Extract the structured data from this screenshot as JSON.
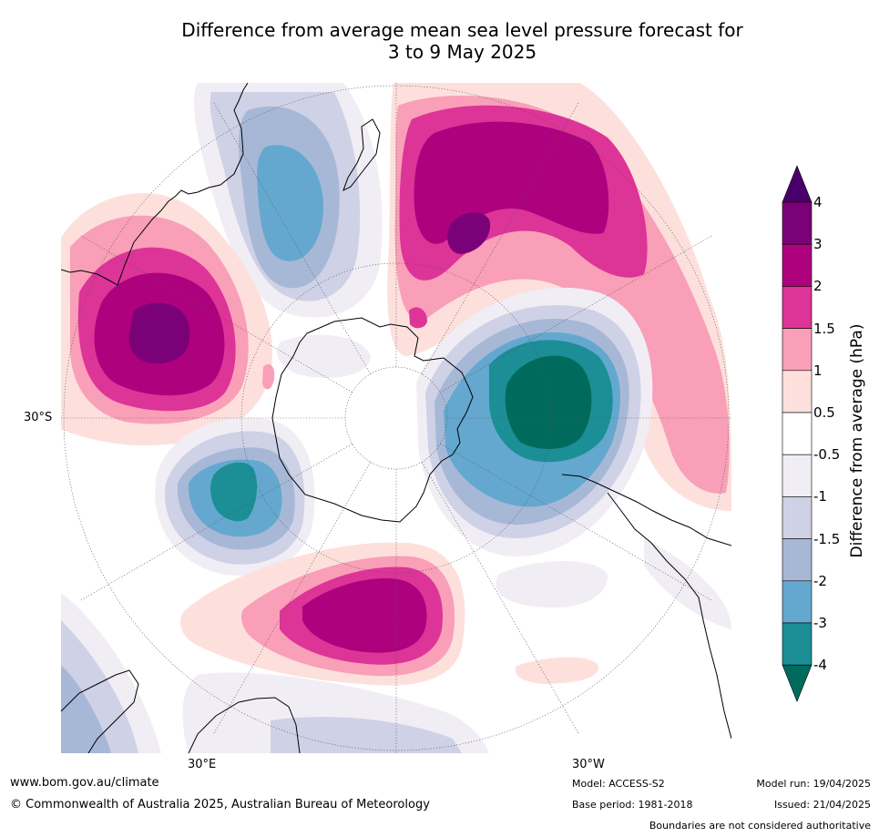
{
  "title_line1": "Difference from average mean sea level pressure forecast for",
  "title_line2": "3 to 9 May 2025",
  "map": {
    "lat_label": "30°S",
    "lon_labels": [
      "30°E",
      "30°W"
    ],
    "colors": {
      "n4": "#006b5c",
      "n3": "#1b8e96",
      "n2": "#64a8cf",
      "n15": "#a7b8d7",
      "n1": "#cfd1e6",
      "n05": "#f1edf4",
      "z": "#ffffff",
      "p05": "#fde0dc",
      "p1": "#f99fb8",
      "p15": "#dd3497",
      "p2": "#ae017e",
      "p3": "#7a0177"
    }
  },
  "colorbar": {
    "label": "Difference from average (hPa)",
    "ticks": [
      "4",
      "3",
      "2",
      "1.5",
      "1",
      "0.5",
      "-0.5",
      "-1",
      "-1.5",
      "-2",
      "-3",
      "-4"
    ],
    "bands": [
      "#7a0177",
      "#ae017e",
      "#dd3497",
      "#f99fb8",
      "#fde0dc",
      "#ffffff",
      "#f1edf4",
      "#cfd1e6",
      "#a7b8d7",
      "#64a8cf",
      "#1b8e96"
    ],
    "top_extend": "#49006a",
    "bottom_extend": "#006b5c"
  },
  "footer": {
    "url": "www.bom.gov.au/climate",
    "copyright": "© Commonwealth of Australia 2025, Australian Bureau of Meteorology",
    "model": "Model: ACCESS-S2",
    "base_period": "Base period: 1981-2018",
    "model_run": "Model run: 19/04/2025",
    "issued": "Issued: 21/04/2025",
    "disclaimer": "Boundaries are not considered authoritative"
  }
}
